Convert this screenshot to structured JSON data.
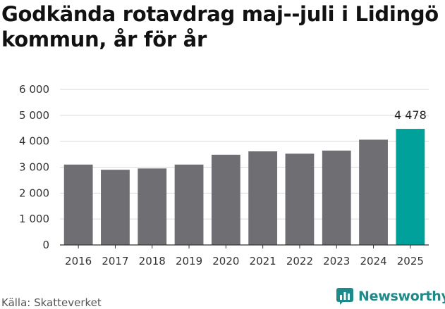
{
  "title": "Godkända rotavdrag maj--juli i Lidingö kommun, år för år",
  "source": "Källa: Skatteverket",
  "brand": {
    "name": "Newsworthy",
    "icon": "newsworthy-logo-icon"
  },
  "colors": {
    "bar": "#6f6e72",
    "highlight": "#00a19a",
    "grid": "#d9d9d9",
    "axis": "#333333",
    "brand": "#1f8a8a"
  },
  "chart_data": {
    "type": "bar",
    "categories": [
      "2016",
      "2017",
      "2018",
      "2019",
      "2020",
      "2021",
      "2022",
      "2023",
      "2024",
      "2025"
    ],
    "values": [
      3100,
      2900,
      2950,
      3100,
      3480,
      3610,
      3520,
      3640,
      4060,
      4478
    ],
    "highlight_index": 9,
    "data_labels": [
      {
        "index": 9,
        "text": "4 478"
      }
    ],
    "ylim": [
      0,
      6000
    ],
    "yticks": [
      0,
      1000,
      2000,
      3000,
      4000,
      5000,
      6000
    ],
    "ytick_labels": [
      "0",
      "1 000",
      "2 000",
      "3 000",
      "4 000",
      "5 000",
      "6 000"
    ],
    "grid": true,
    "xlabel": "",
    "ylabel": ""
  }
}
